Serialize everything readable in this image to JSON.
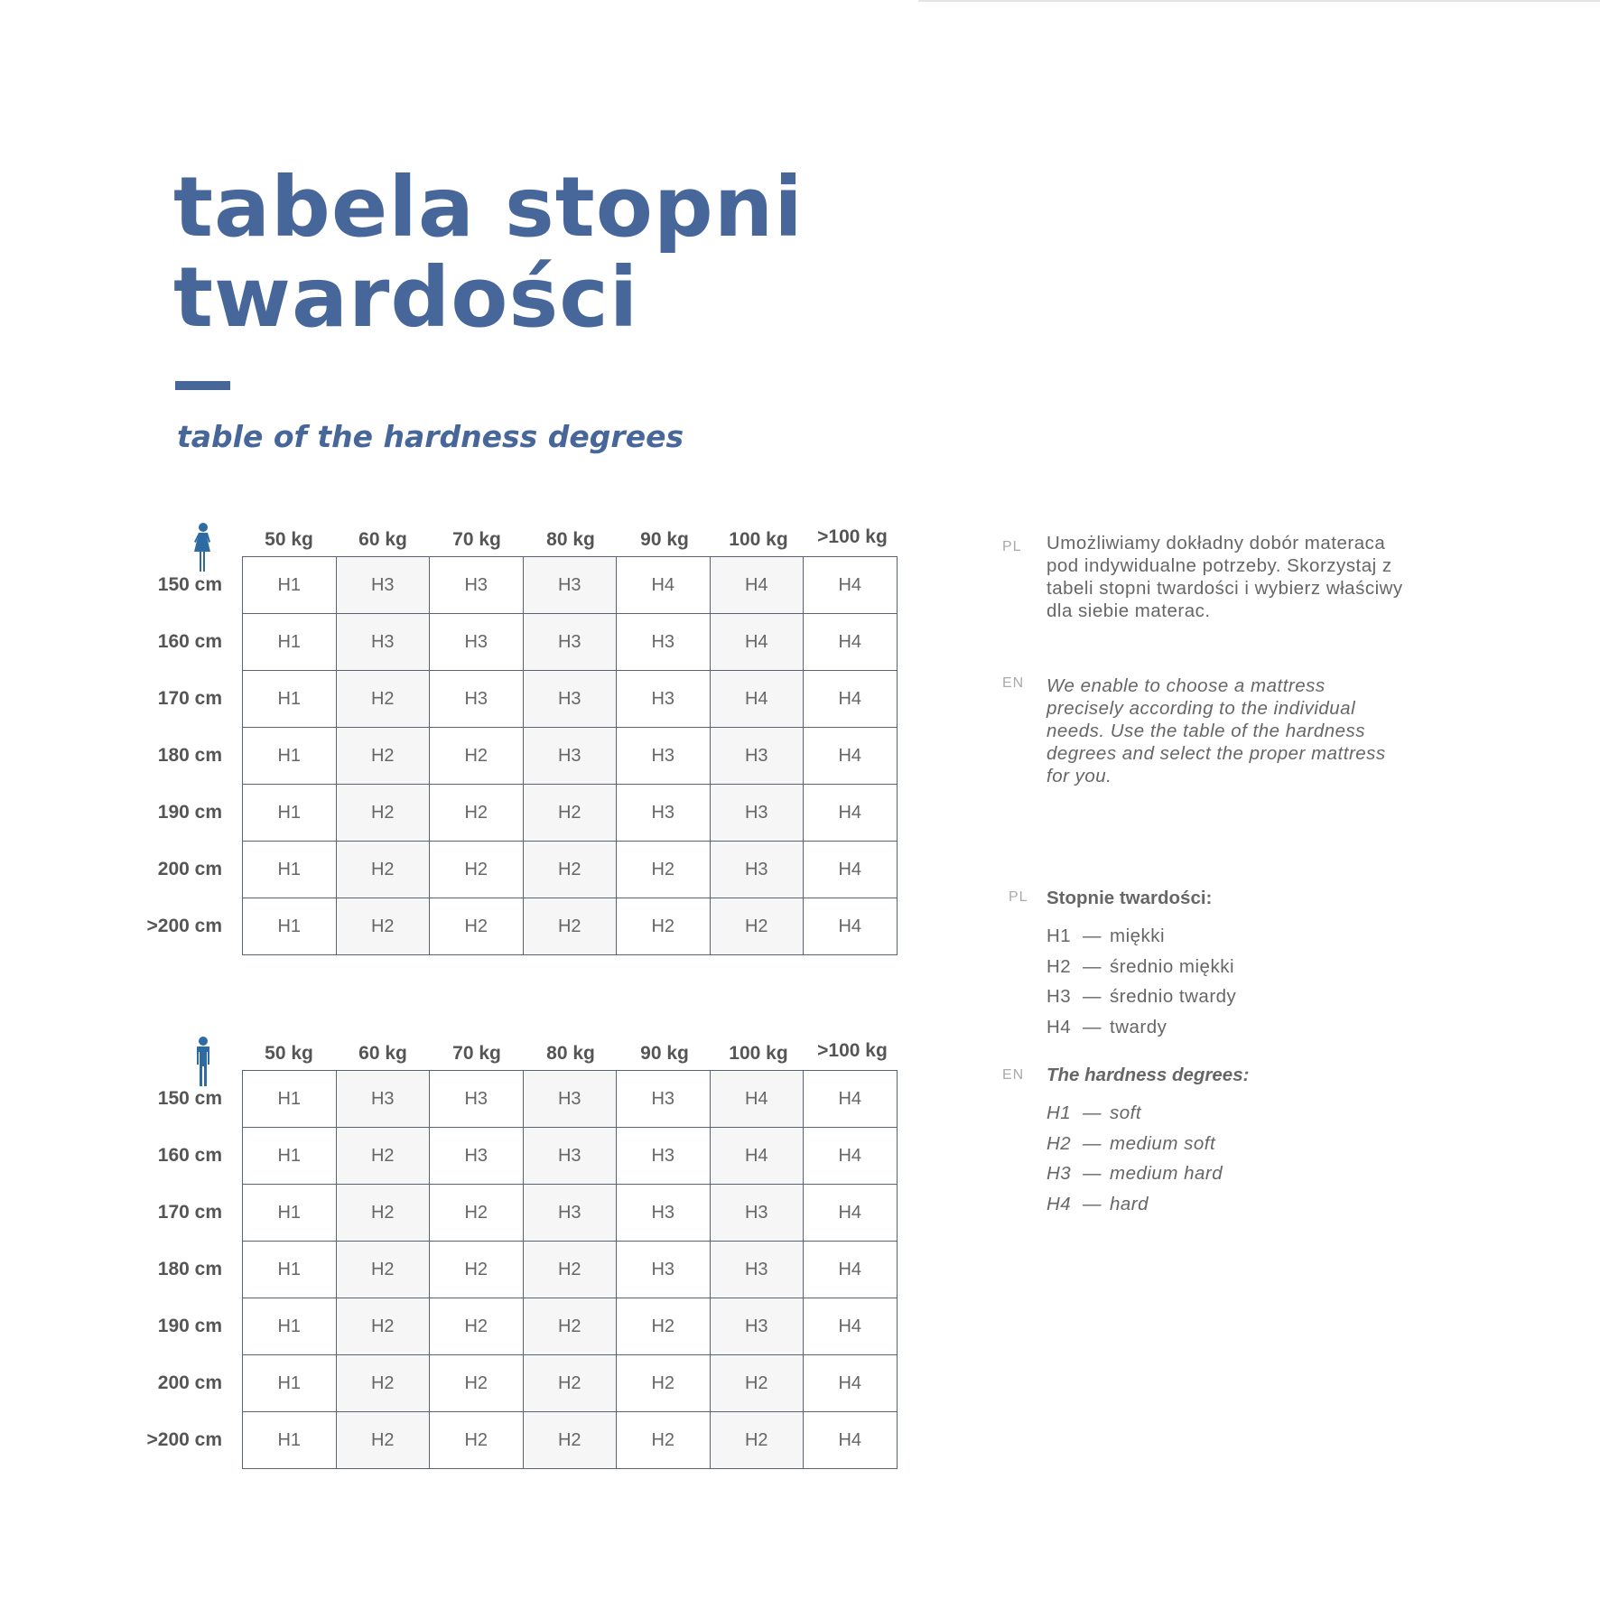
{
  "title_line1": "tabela stopni",
  "title_line2": "twardości",
  "subtitle": "table of the hardness degrees",
  "colors": {
    "brand": "#47679a",
    "icon": "#2f6ba3",
    "alt_column": "#f6f6f6",
    "grid": "#5a6272"
  },
  "weights": [
    "50 kg",
    "60 kg",
    "70 kg",
    "80 kg",
    "90 kg",
    "100 kg",
    ">100 kg"
  ],
  "heights": [
    "150 cm",
    "160 cm",
    "170 cm",
    "180 cm",
    "190 cm",
    "200 cm",
    ">200 cm"
  ],
  "tables": [
    {
      "icon": "woman-icon",
      "rows": [
        [
          "H1",
          "H3",
          "H3",
          "H3",
          "H4",
          "H4",
          "H4"
        ],
        [
          "H1",
          "H3",
          "H3",
          "H3",
          "H3",
          "H4",
          "H4"
        ],
        [
          "H1",
          "H2",
          "H3",
          "H3",
          "H3",
          "H4",
          "H4"
        ],
        [
          "H1",
          "H2",
          "H2",
          "H3",
          "H3",
          "H3",
          "H4"
        ],
        [
          "H1",
          "H2",
          "H2",
          "H2",
          "H3",
          "H3",
          "H4"
        ],
        [
          "H1",
          "H2",
          "H2",
          "H2",
          "H2",
          "H3",
          "H4"
        ],
        [
          "H1",
          "H2",
          "H2",
          "H2",
          "H2",
          "H2",
          "H4"
        ]
      ]
    },
    {
      "icon": "man-icon",
      "rows": [
        [
          "H1",
          "H3",
          "H3",
          "H3",
          "H3",
          "H4",
          "H4"
        ],
        [
          "H1",
          "H2",
          "H3",
          "H3",
          "H3",
          "H4",
          "H4"
        ],
        [
          "H1",
          "H2",
          "H2",
          "H3",
          "H3",
          "H3",
          "H4"
        ],
        [
          "H1",
          "H2",
          "H2",
          "H2",
          "H3",
          "H3",
          "H4"
        ],
        [
          "H1",
          "H2",
          "H2",
          "H2",
          "H2",
          "H3",
          "H4"
        ],
        [
          "H1",
          "H2",
          "H2",
          "H2",
          "H2",
          "H2",
          "H4"
        ],
        [
          "H1",
          "H2",
          "H2",
          "H2",
          "H2",
          "H2",
          "H4"
        ]
      ]
    }
  ],
  "description": {
    "pl_label": "PL",
    "pl_text": "Umożliwiamy dokładny dobór materaca pod indywidualne potrzeby. Skorzystaj z tabeli stopni twardości i wybierz właściwy dla siebie materac.",
    "en_label": "EN",
    "en_text": "We enable to choose a mattress precisely according to the individual needs. Use the table of the hardness degrees and select the proper mattress for you."
  },
  "legend": {
    "pl_label": "PL",
    "pl_heading": "Stopnie twardości:",
    "pl_items": [
      {
        "key": "H1",
        "dash": "—",
        "desc": "miękki"
      },
      {
        "key": "H2",
        "dash": "—",
        "desc": "średnio miękki"
      },
      {
        "key": "H3",
        "dash": "—",
        "desc": "średnio twardy"
      },
      {
        "key": "H4",
        "dash": "—",
        "desc": "twardy"
      }
    ],
    "en_label": "EN",
    "en_heading": "The hardness degrees:",
    "en_items": [
      {
        "key": "H1",
        "dash": "—",
        "desc": "soft"
      },
      {
        "key": "H2",
        "dash": "—",
        "desc": "medium soft"
      },
      {
        "key": "H3",
        "dash": "—",
        "desc": "medium hard"
      },
      {
        "key": "H4",
        "dash": "—",
        "desc": "hard"
      }
    ]
  }
}
